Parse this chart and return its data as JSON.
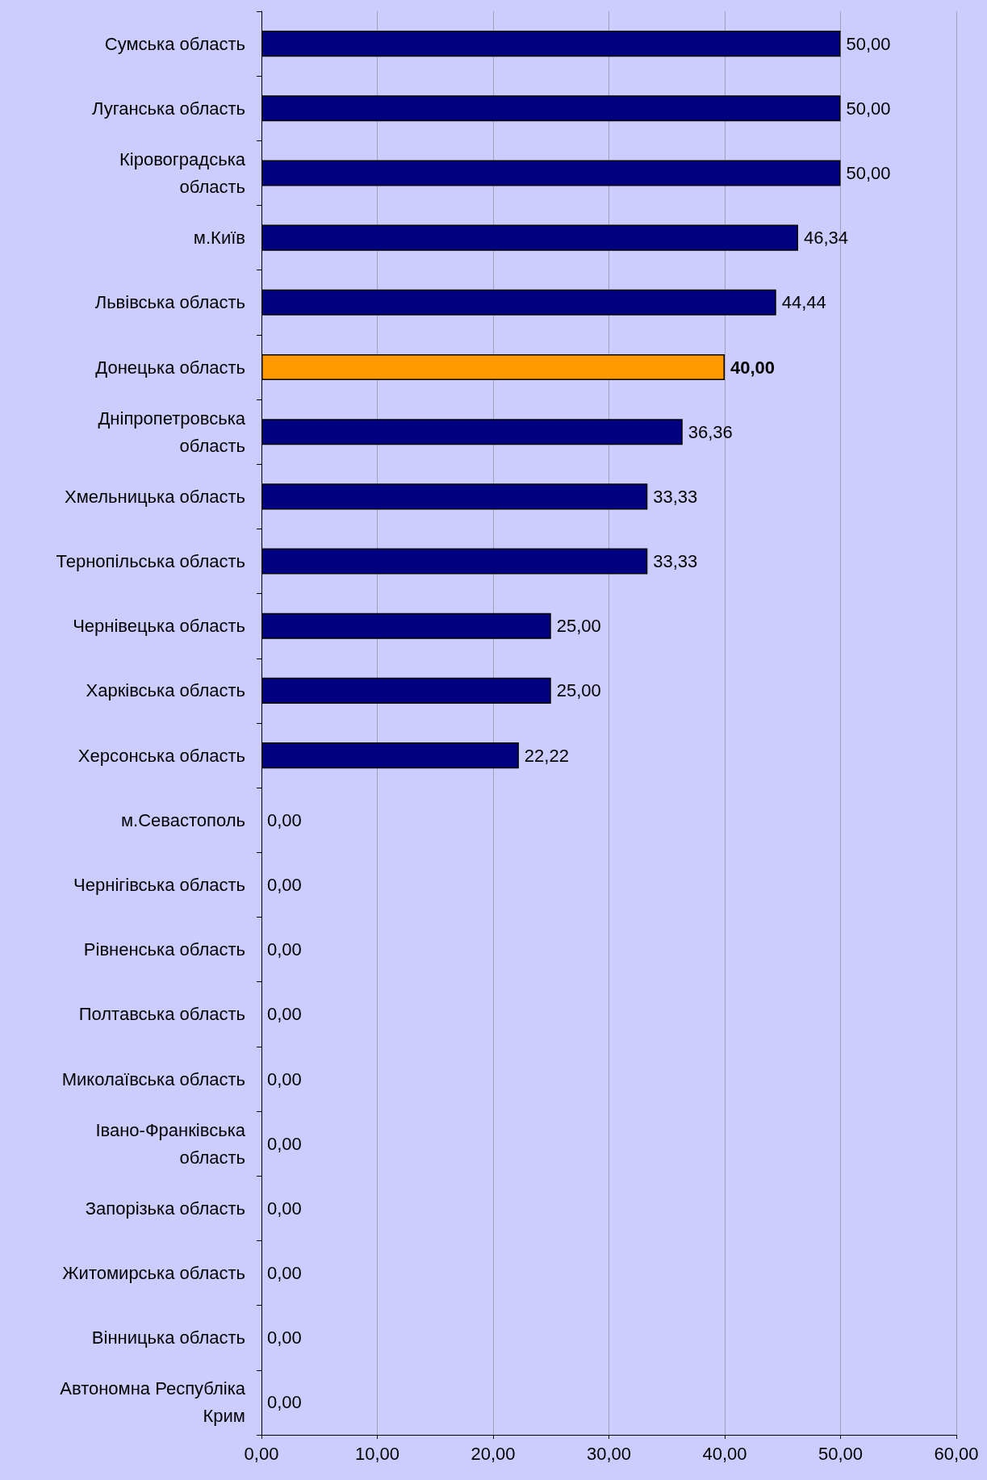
{
  "chart_data": {
    "type": "bar",
    "orientation": "horizontal",
    "categories": [
      "Сумська область",
      "Луганська область",
      "Кіровоградська\nобласть",
      "м.Київ",
      "Львівська область",
      "Донецька область",
      "Дніпропетровська\nобласть",
      "Хмельницька область",
      "Тернопільська область",
      "Чернівецька область",
      "Харківська область",
      "Херсонська область",
      "м.Севастополь",
      "Чернігівська область",
      "Рівненська область",
      "Полтавська область",
      "Миколаївська область",
      "Івано-Франківська\nобласть",
      "Запорізька область",
      "Житомирська область",
      "Вінницька область",
      "Автономна Республіка\nКрим"
    ],
    "values": [
      50,
      50,
      50,
      46.34,
      44.44,
      40,
      36.36,
      33.33,
      33.33,
      25,
      25,
      22.22,
      0,
      0,
      0,
      0,
      0,
      0,
      0,
      0,
      0,
      0
    ],
    "value_labels": [
      "50,00",
      "50,00",
      "50,00",
      "46,34",
      "44,44",
      "40,00",
      "36,36",
      "33,33",
      "33,33",
      "25,00",
      "25,00",
      "22,22",
      "0,00",
      "0,00",
      "0,00",
      "0,00",
      "0,00",
      "0,00",
      "0,00",
      "0,00",
      "0,00",
      "0,00"
    ],
    "color": "#000080",
    "colors": [
      "#000080",
      "#000080",
      "#000080",
      "#000080",
      "#000080",
      "#ff9900",
      "#000080",
      "#000080",
      "#000080",
      "#000080",
      "#000080",
      "#000080",
      "#000080",
      "#000080",
      "#000080",
      "#000080",
      "#000080",
      "#000080",
      "#000080",
      "#000080",
      "#000080",
      "#000080"
    ],
    "xlim": [
      0,
      60
    ],
    "xticks": [
      {
        "value": 0,
        "label": "0,00"
      },
      {
        "value": 10,
        "label": "10,00"
      },
      {
        "value": 20,
        "label": "20,00"
      },
      {
        "value": 30,
        "label": "30,00"
      },
      {
        "value": 40,
        "label": "40,00"
      },
      {
        "value": 50,
        "label": "50,00"
      },
      {
        "value": 60,
        "label": "60,00"
      }
    ],
    "grid": "x"
  }
}
